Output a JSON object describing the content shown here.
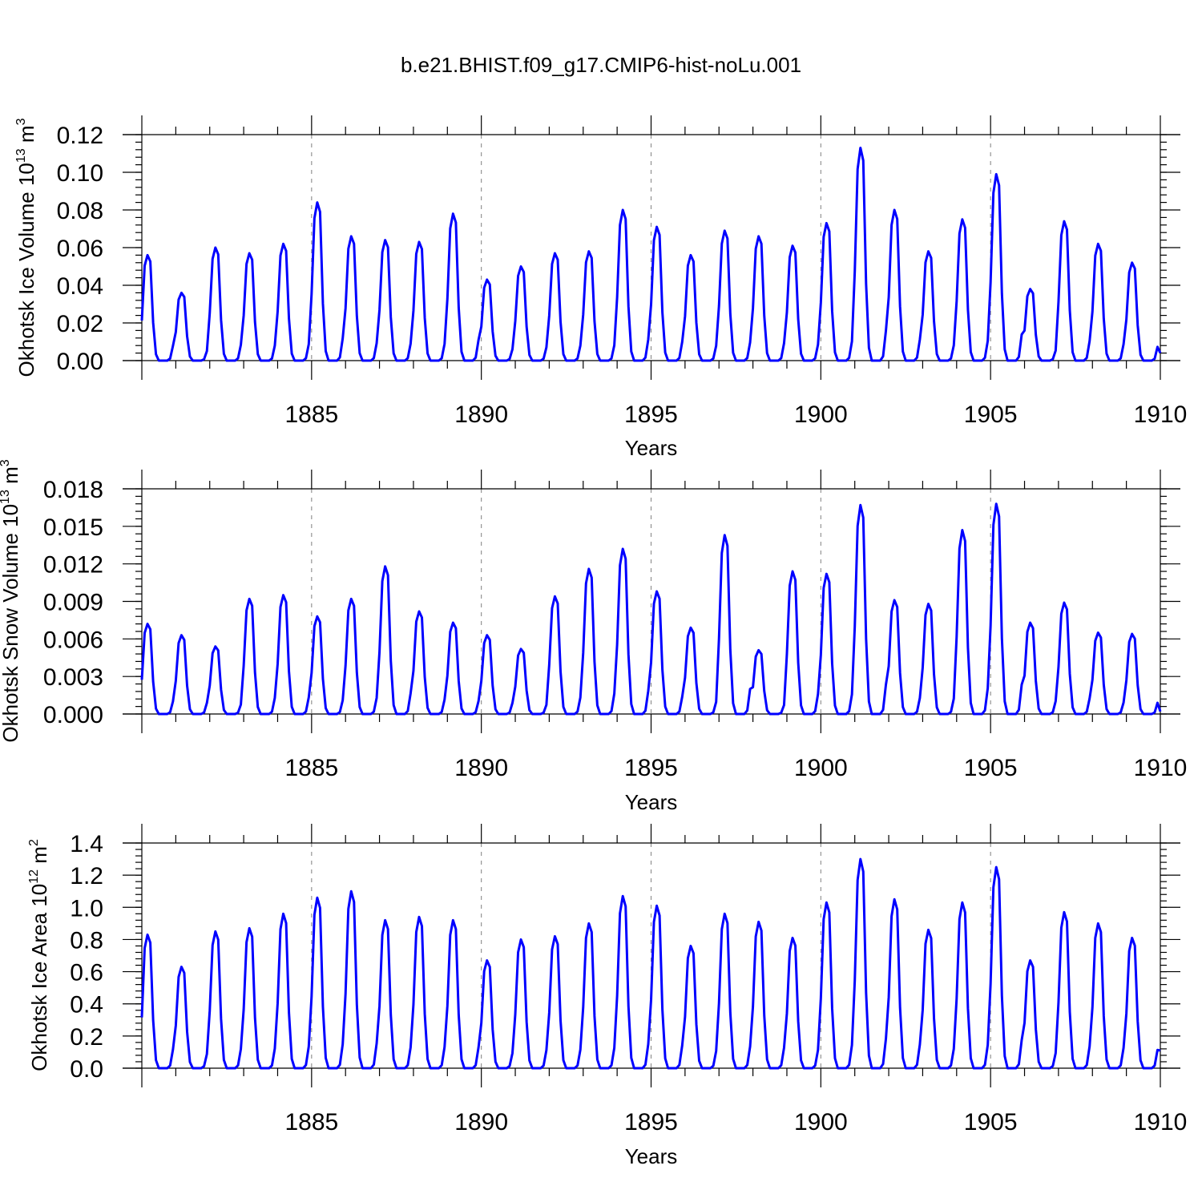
{
  "figure": {
    "title": "b.e21.BHIST.f09_g17.CMIP6-hist-noLu.001",
    "line_color": "#0000ff"
  },
  "chart_data": [
    {
      "type": "line",
      "ylabel_main": "Okhotsk Ice Volume 10",
      "ylabel_exp": "13",
      "ylabel_unit": " m",
      "ylabel_unit_exp": "3",
      "xlabel": "Years",
      "xlim": [
        1880,
        1910
      ],
      "ylim": [
        0,
        0.12
      ],
      "yticks": [
        0,
        0.02,
        0.04,
        0.06,
        0.08,
        0.1,
        0.12
      ],
      "ytick_labels": [
        "0.00",
        "0.02",
        "0.04",
        "0.06",
        "0.08",
        "0.10",
        "0.12"
      ],
      "xticks": [
        1885,
        1890,
        1895,
        1900,
        1905,
        1910
      ],
      "xtick_labels": [
        "1885",
        "1890",
        "1895",
        "1900",
        "1905",
        "1910"
      ],
      "dashed_vlines": [
        1885,
        1890,
        1895,
        1900,
        1905
      ],
      "series": [
        {
          "name": "Okhotsk Ice Volume",
          "start_year": 1880,
          "monthly_peak": 3,
          "annual_peaks": [
            0.056,
            0.036,
            0.06,
            0.057,
            0.062,
            0.084,
            0.066,
            0.064,
            0.063,
            0.078,
            0.043,
            0.05,
            0.057,
            0.058,
            0.08,
            0.071,
            0.056,
            0.069,
            0.066,
            0.061,
            0.073,
            0.113,
            0.08,
            0.058,
            0.075,
            0.099,
            0.038,
            0.074,
            0.062,
            0.052
          ],
          "final_value": 0.004
        }
      ]
    },
    {
      "type": "line",
      "ylabel_main": "Okhotsk Snow Volume 10",
      "ylabel_exp": "13",
      "ylabel_unit": " m",
      "ylabel_unit_exp": "3",
      "xlabel": "Years",
      "xlim": [
        1880,
        1910
      ],
      "ylim": [
        0,
        0.018
      ],
      "yticks": [
        0,
        0.003,
        0.006,
        0.009,
        0.012,
        0.015,
        0.018
      ],
      "ytick_labels": [
        "0.000",
        "0.003",
        "0.006",
        "0.009",
        "0.012",
        "0.015",
        "0.018"
      ],
      "xticks": [
        1885,
        1890,
        1895,
        1900,
        1905,
        1910
      ],
      "xtick_labels": [
        "1885",
        "1890",
        "1895",
        "1900",
        "1905",
        "1910"
      ],
      "dashed_vlines": [
        1885,
        1890,
        1895,
        1900,
        1905
      ],
      "series": [
        {
          "name": "Okhotsk Snow Volume",
          "start_year": 1880,
          "monthly_peak": 3,
          "annual_peaks": [
            0.0072,
            0.0063,
            0.0054,
            0.0092,
            0.0095,
            0.0078,
            0.0092,
            0.0118,
            0.0082,
            0.0073,
            0.0063,
            0.0052,
            0.0094,
            0.0116,
            0.0132,
            0.0098,
            0.0069,
            0.0143,
            0.0051,
            0.0114,
            0.0112,
            0.0167,
            0.0091,
            0.0088,
            0.0147,
            0.0168,
            0.0073,
            0.0089,
            0.0065,
            0.0064
          ],
          "final_value": 0.0002
        }
      ]
    },
    {
      "type": "line",
      "ylabel_main": "Okhotsk Ice Area 10",
      "ylabel_exp": "12",
      "ylabel_unit": " m",
      "ylabel_unit_exp": "2",
      "xlabel": "Years",
      "xlim": [
        1880,
        1910
      ],
      "ylim": [
        0,
        1.4
      ],
      "yticks": [
        0,
        0.2,
        0.4,
        0.6,
        0.8,
        1.0,
        1.2,
        1.4
      ],
      "ytick_labels": [
        "0.0",
        "0.2",
        "0.4",
        "0.6",
        "0.8",
        "1.0",
        "1.2",
        "1.4"
      ],
      "xticks": [
        1885,
        1890,
        1895,
        1900,
        1905,
        1910
      ],
      "xtick_labels": [
        "1885",
        "1890",
        "1895",
        "1900",
        "1905",
        "1910"
      ],
      "dashed_vlines": [
        1885,
        1890,
        1895,
        1900,
        1905
      ],
      "series": [
        {
          "name": "Okhotsk Ice Area",
          "start_year": 1880,
          "monthly_peak": 3,
          "annual_peaks": [
            0.83,
            0.63,
            0.85,
            0.87,
            0.96,
            1.06,
            1.1,
            0.92,
            0.94,
            0.92,
            0.67,
            0.8,
            0.82,
            0.9,
            1.07,
            1.01,
            0.76,
            0.96,
            0.91,
            0.81,
            1.03,
            1.3,
            1.05,
            0.86,
            1.03,
            1.25,
            0.67,
            0.97,
            0.9,
            0.81
          ],
          "final_value": 0.11
        }
      ]
    }
  ]
}
